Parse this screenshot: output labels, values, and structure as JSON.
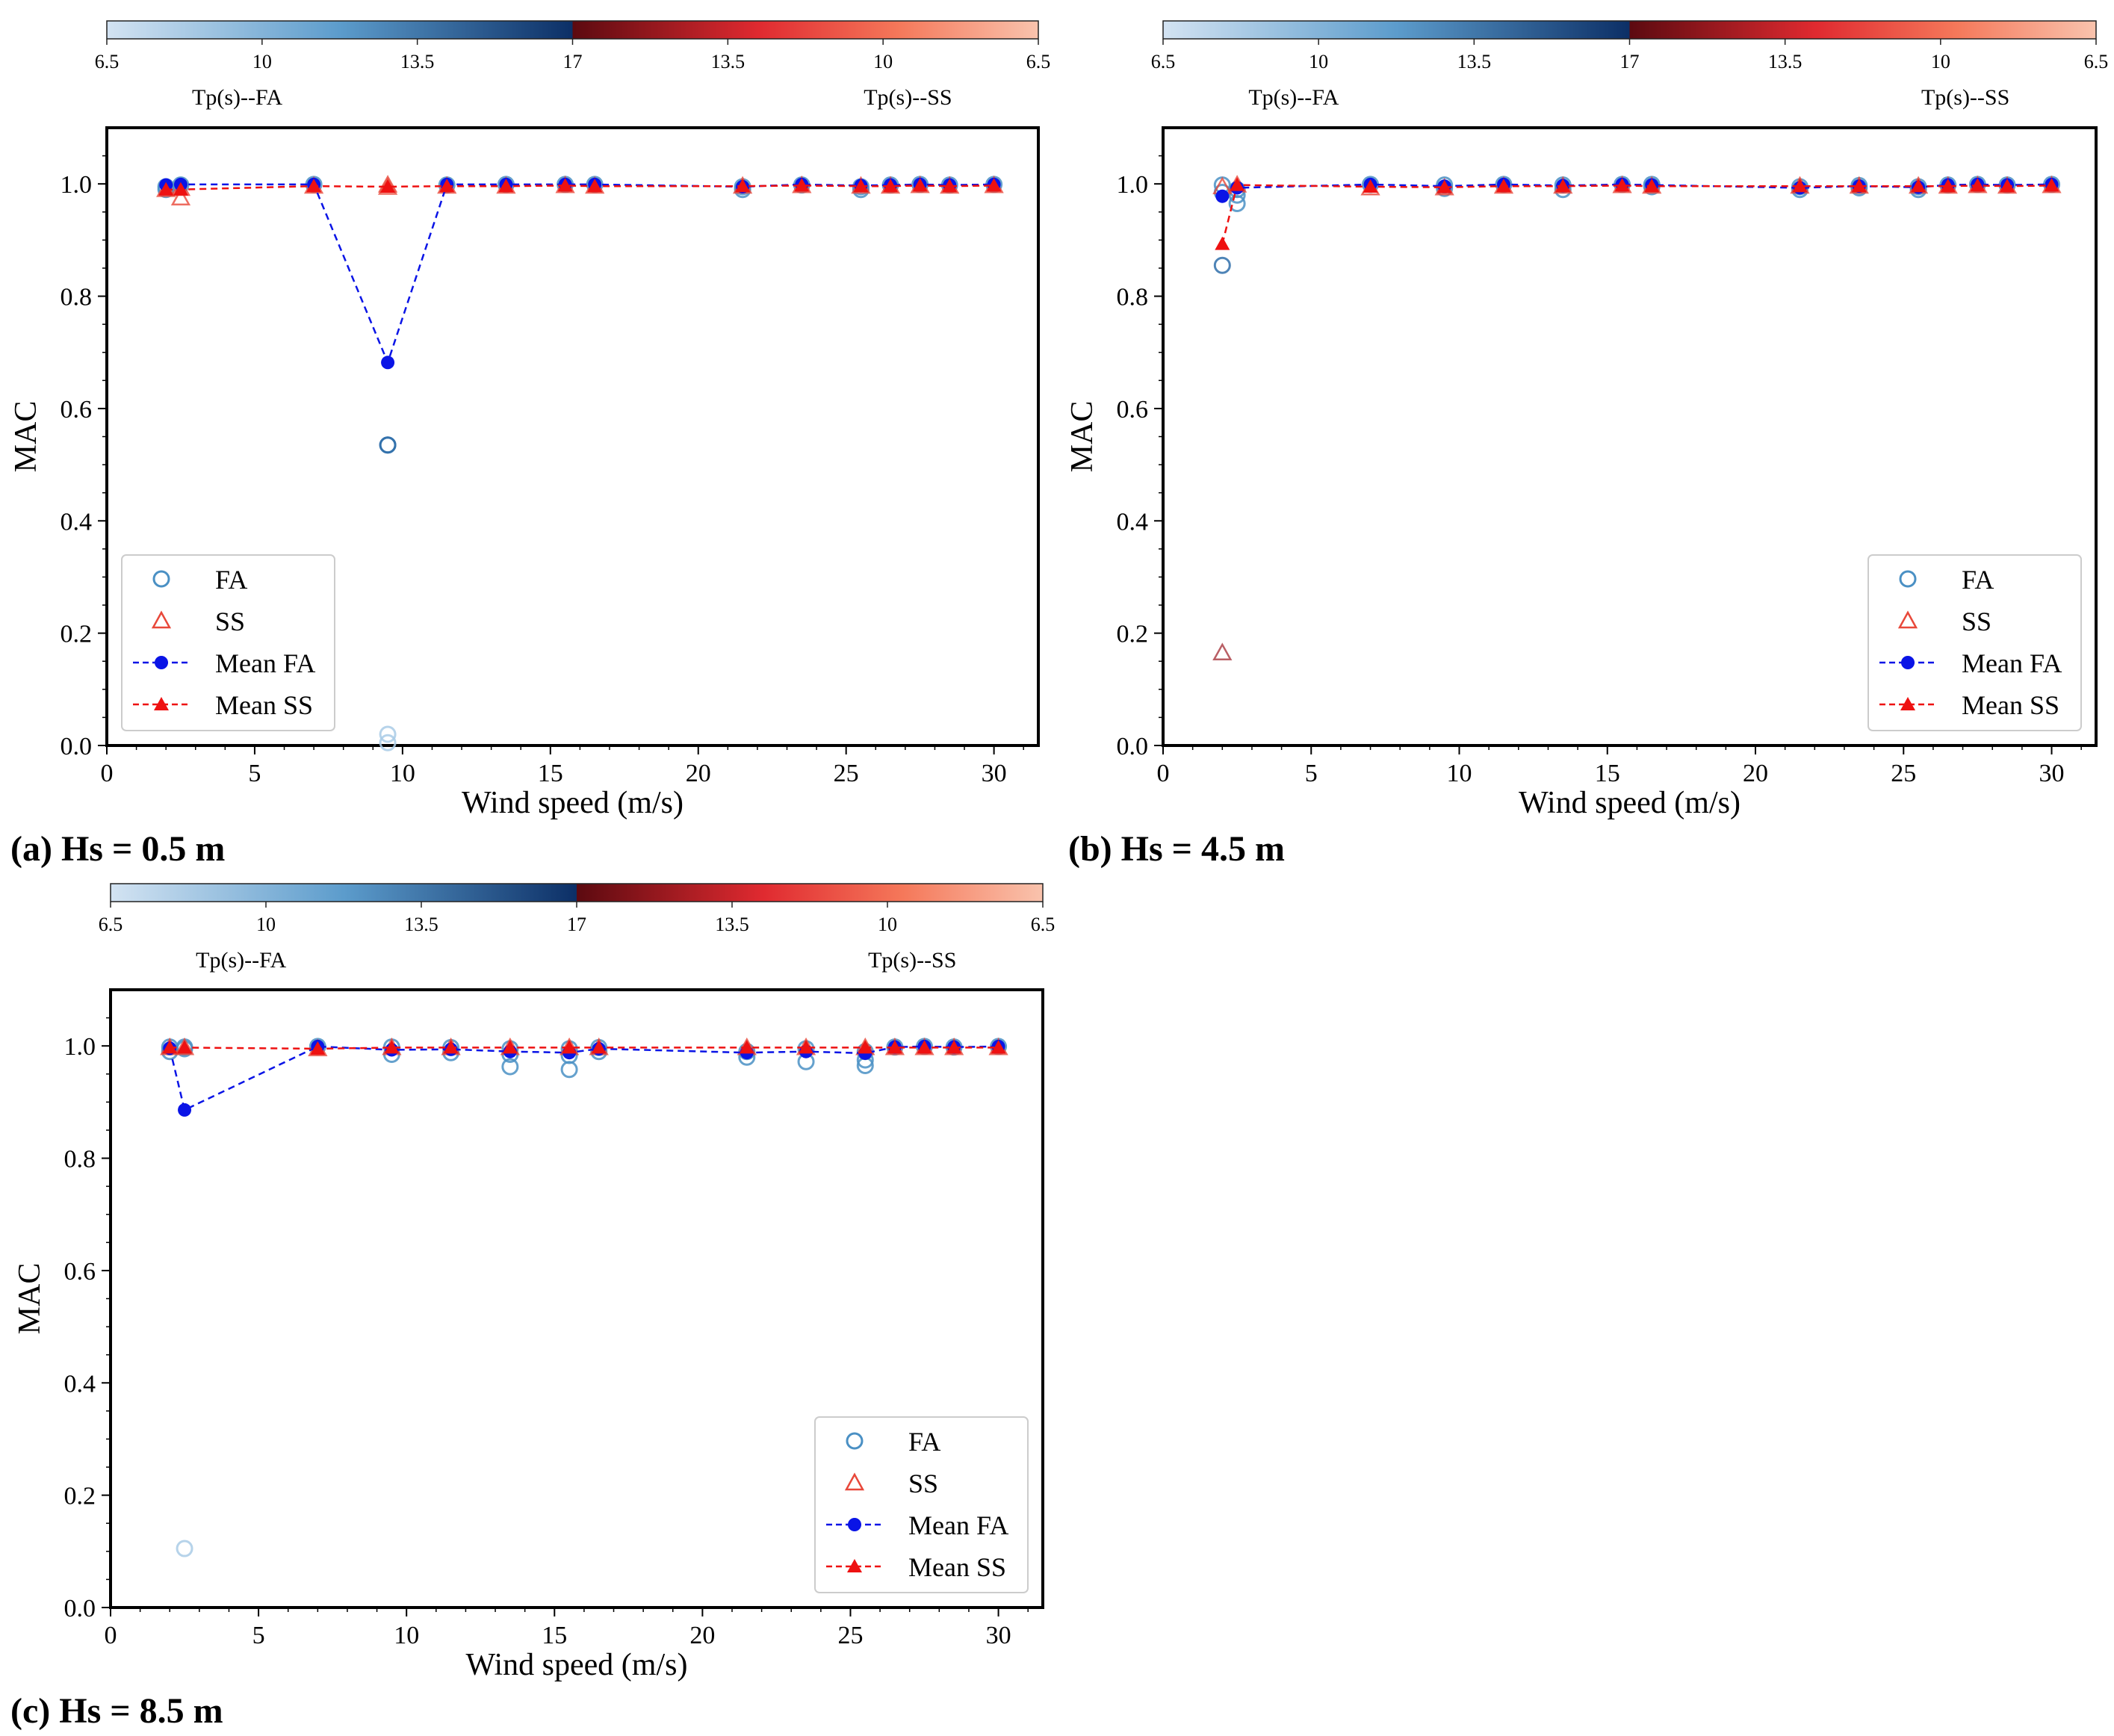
{
  "figure": {
    "colors": {
      "fa_scatter": "#4a90c4",
      "ss_scatter": "#e8483a",
      "mean_fa": "#0a14e6",
      "mean_ss": "#ee1111",
      "cb_fa_light": "#d3e3f2",
      "cb_fa_dark": "#0c2f66",
      "cb_ss_dark": "#5c0a10",
      "cb_ss_light": "#f9c3ad"
    }
  },
  "chart_data": [
    {
      "type": "scatter",
      "panel": "a",
      "caption": "(a) Hs = 0.5 m",
      "xlabel": "Wind speed (m/s)",
      "ylabel": "MAC",
      "xlim": [
        0,
        31.5
      ],
      "ylim": [
        0,
        1.1
      ],
      "xticks": [
        "0",
        "5",
        "10",
        "15",
        "20",
        "25",
        "30"
      ],
      "yticks": [
        "0.0",
        "0.2",
        "0.4",
        "0.6",
        "0.8",
        "1.0"
      ],
      "colorbar": {
        "ticks": [
          "6.5",
          "10",
          "13.5",
          "17",
          "13.5",
          "10",
          "6.5"
        ],
        "label_left": "Tp(s)--FA",
        "label_right": "Tp(s)--SS"
      },
      "legend": {
        "position": "lower-left",
        "entries": [
          "FA",
          "SS",
          "Mean FA",
          "Mean SS"
        ]
      },
      "series": [
        {
          "name": "FA",
          "kind": "points",
          "points": [
            [
              2,
              0.995
            ],
            [
              2,
              0.99
            ],
            [
              2.5,
              0.998
            ],
            [
              7,
              0.999
            ],
            [
              9.5,
              0.535
            ],
            [
              9.5,
              0.535
            ],
            [
              9.5,
              0.02
            ],
            [
              9.5,
              0.005
            ],
            [
              11.5,
              0.998
            ],
            [
              13.5,
              0.999
            ],
            [
              15.5,
              0.999
            ],
            [
              16.5,
              0.999
            ],
            [
              21.5,
              0.995
            ],
            [
              21.5,
              0.99
            ],
            [
              23.5,
              0.998
            ],
            [
              25.5,
              0.995
            ],
            [
              25.5,
              0.99
            ],
            [
              26.5,
              0.998
            ],
            [
              27.5,
              0.999
            ],
            [
              28.5,
              0.998
            ],
            [
              30,
              0.999
            ]
          ]
        },
        {
          "name": "SS",
          "kind": "points",
          "points": [
            [
              2,
              0.99
            ],
            [
              2.5,
              0.975
            ],
            [
              2.5,
              0.992
            ],
            [
              7,
              0.996
            ],
            [
              9.5,
              0.998
            ],
            [
              9.5,
              0.994
            ],
            [
              11.5,
              0.996
            ],
            [
              13.5,
              0.996
            ],
            [
              15.5,
              0.997
            ],
            [
              16.5,
              0.996
            ],
            [
              21.5,
              0.996
            ],
            [
              23.5,
              0.997
            ],
            [
              25.5,
              0.996
            ],
            [
              26.5,
              0.996
            ],
            [
              27.5,
              0.997
            ],
            [
              28.5,
              0.996
            ],
            [
              30,
              0.997
            ]
          ]
        },
        {
          "name": "Mean FA",
          "kind": "mean",
          "x": [
            2,
            2.5,
            7,
            9.5,
            11.5,
            13.5,
            15.5,
            16.5,
            21.5,
            23.5,
            25.5,
            26.5,
            27.5,
            28.5,
            30
          ],
          "y": [
            0.998,
            0.999,
            0.999,
            0.682,
            0.999,
            0.999,
            0.999,
            0.999,
            0.995,
            0.999,
            0.997,
            0.998,
            0.999,
            0.998,
            0.999
          ]
        },
        {
          "name": "Mean SS",
          "kind": "mean",
          "x": [
            2,
            2.5,
            7,
            9.5,
            11.5,
            13.5,
            15.5,
            16.5,
            21.5,
            23.5,
            25.5,
            26.5,
            27.5,
            28.5,
            30
          ],
          "y": [
            0.99,
            0.99,
            0.996,
            0.995,
            0.996,
            0.996,
            0.997,
            0.996,
            0.996,
            0.997,
            0.996,
            0.996,
            0.997,
            0.996,
            0.997
          ]
        }
      ]
    },
    {
      "type": "scatter",
      "panel": "b",
      "caption": "(b) Hs = 4.5 m",
      "xlabel": "Wind speed (m/s)",
      "ylabel": "MAC",
      "xlim": [
        0,
        31.5
      ],
      "ylim": [
        0,
        1.1
      ],
      "xticks": [
        "0",
        "5",
        "10",
        "15",
        "20",
        "25",
        "30"
      ],
      "yticks": [
        "0.0",
        "0.2",
        "0.4",
        "0.6",
        "0.8",
        "1.0"
      ],
      "colorbar": {
        "ticks": [
          "6.5",
          "10",
          "13.5",
          "17",
          "13.5",
          "10",
          "6.5"
        ],
        "label_left": "Tp(s)--FA",
        "label_right": "Tp(s)--SS"
      },
      "legend": {
        "position": "lower-right",
        "entries": [
          "FA",
          "SS",
          "Mean FA",
          "Mean SS"
        ]
      },
      "series": [
        {
          "name": "FA",
          "kind": "points",
          "points": [
            [
              2,
              0.998
            ],
            [
              2,
              0.985
            ],
            [
              2,
              0.855
            ],
            [
              2.5,
              0.99
            ],
            [
              2.5,
              0.98
            ],
            [
              2.5,
              0.965
            ],
            [
              7,
              0.999
            ],
            [
              9.5,
              0.998
            ],
            [
              9.5,
              0.992
            ],
            [
              11.5,
              0.999
            ],
            [
              13.5,
              0.998
            ],
            [
              13.5,
              0.99
            ],
            [
              15.5,
              0.999
            ],
            [
              16.5,
              0.999
            ],
            [
              16.5,
              0.995
            ],
            [
              21.5,
              0.995
            ],
            [
              21.5,
              0.99
            ],
            [
              23.5,
              0.997
            ],
            [
              23.5,
              0.993
            ],
            [
              25.5,
              0.995
            ],
            [
              25.5,
              0.99
            ],
            [
              26.5,
              0.998
            ],
            [
              27.5,
              0.999
            ],
            [
              28.5,
              0.998
            ],
            [
              30,
              0.999
            ]
          ]
        },
        {
          "name": "SS",
          "kind": "points",
          "points": [
            [
              2,
              0.165
            ],
            [
              2,
              0.995
            ],
            [
              2.5,
              0.998
            ],
            [
              7,
              0.993
            ],
            [
              9.5,
              0.993
            ],
            [
              11.5,
              0.996
            ],
            [
              13.5,
              0.996
            ],
            [
              15.5,
              0.997
            ],
            [
              16.5,
              0.996
            ],
            [
              21.5,
              0.996
            ],
            [
              23.5,
              0.996
            ],
            [
              25.5,
              0.996
            ],
            [
              26.5,
              0.996
            ],
            [
              27.5,
              0.997
            ],
            [
              28.5,
              0.996
            ],
            [
              30,
              0.997
            ]
          ]
        },
        {
          "name": "Mean FA",
          "kind": "mean",
          "x": [
            2,
            2.5,
            7,
            9.5,
            11.5,
            13.5,
            15.5,
            16.5,
            21.5,
            23.5,
            25.5,
            26.5,
            27.5,
            28.5,
            30
          ],
          "y": [
            0.978,
            0.993,
            0.999,
            0.996,
            0.999,
            0.997,
            0.999,
            0.998,
            0.993,
            0.996,
            0.994,
            0.998,
            0.999,
            0.998,
            0.999
          ]
        },
        {
          "name": "Mean SS",
          "kind": "mean",
          "x": [
            2,
            2.5,
            7,
            9.5,
            11.5,
            13.5,
            15.5,
            16.5,
            21.5,
            23.5,
            25.5,
            26.5,
            27.5,
            28.5,
            30
          ],
          "y": [
            0.893,
            0.998,
            0.995,
            0.994,
            0.996,
            0.996,
            0.997,
            0.996,
            0.996,
            0.996,
            0.996,
            0.996,
            0.997,
            0.996,
            0.997
          ]
        }
      ]
    },
    {
      "type": "scatter",
      "panel": "c",
      "caption": "(c) Hs = 8.5 m",
      "xlabel": "Wind speed (m/s)",
      "ylabel": "MAC",
      "xlim": [
        0,
        31.5
      ],
      "ylim": [
        0,
        1.1
      ],
      "xticks": [
        "0",
        "5",
        "10",
        "15",
        "20",
        "25",
        "30"
      ],
      "yticks": [
        "0.0",
        "0.2",
        "0.4",
        "0.6",
        "0.8",
        "1.0"
      ],
      "colorbar": {
        "ticks": [
          "6.5",
          "10",
          "13.5",
          "17",
          "13.5",
          "10",
          "6.5"
        ],
        "label_left": "Tp(s)--FA",
        "label_right": "Tp(s)--SS"
      },
      "legend": {
        "position": "lower-right",
        "entries": [
          "FA",
          "SS",
          "Mean FA",
          "Mean SS"
        ]
      },
      "series": [
        {
          "name": "FA",
          "kind": "points",
          "points": [
            [
              2,
              0.998
            ],
            [
              2,
              0.99
            ],
            [
              2.5,
              0.998
            ],
            [
              2.5,
              0.995
            ],
            [
              2.5,
              0.105
            ],
            [
              7,
              0.999
            ],
            [
              9.5,
              0.998
            ],
            [
              9.5,
              0.985
            ],
            [
              11.5,
              0.997
            ],
            [
              11.5,
              0.988
            ],
            [
              13.5,
              0.995
            ],
            [
              13.5,
              0.985
            ],
            [
              13.5,
              0.963
            ],
            [
              15.5,
              0.995
            ],
            [
              15.5,
              0.983
            ],
            [
              15.5,
              0.958
            ],
            [
              16.5,
              0.997
            ],
            [
              16.5,
              0.99
            ],
            [
              21.5,
              0.99
            ],
            [
              21.5,
              0.98
            ],
            [
              23.5,
              0.995
            ],
            [
              23.5,
              0.972
            ],
            [
              25.5,
              0.99
            ],
            [
              25.5,
              0.975
            ],
            [
              25.5,
              0.965
            ],
            [
              26.5,
              0.998
            ],
            [
              27.5,
              0.999
            ],
            [
              28.5,
              0.998
            ],
            [
              30,
              0.999
            ]
          ]
        },
        {
          "name": "SS",
          "kind": "points",
          "points": [
            [
              2,
              0.997
            ],
            [
              2.5,
              0.997
            ],
            [
              7,
              0.995
            ],
            [
              9.5,
              0.997
            ],
            [
              11.5,
              0.997
            ],
            [
              13.5,
              0.997
            ],
            [
              15.5,
              0.997
            ],
            [
              16.5,
              0.997
            ],
            [
              21.5,
              0.997
            ],
            [
              23.5,
              0.997
            ],
            [
              25.5,
              0.997
            ],
            [
              26.5,
              0.997
            ],
            [
              27.5,
              0.997
            ],
            [
              28.5,
              0.997
            ],
            [
              30,
              0.997
            ]
          ]
        },
        {
          "name": "Mean FA",
          "kind": "mean",
          "x": [
            2,
            2.5,
            7,
            9.5,
            11.5,
            13.5,
            15.5,
            16.5,
            21.5,
            23.5,
            25.5,
            26.5,
            27.5,
            28.5,
            30
          ],
          "y": [
            0.996,
            0.886,
            0.999,
            0.993,
            0.994,
            0.99,
            0.988,
            0.995,
            0.988,
            0.99,
            0.987,
            0.998,
            0.999,
            0.998,
            0.999
          ]
        },
        {
          "name": "Mean SS",
          "kind": "mean",
          "x": [
            2,
            2.5,
            7,
            9.5,
            11.5,
            13.5,
            15.5,
            16.5,
            21.5,
            23.5,
            25.5,
            26.5,
            27.5,
            28.5,
            30
          ],
          "y": [
            0.997,
            0.997,
            0.995,
            0.997,
            0.997,
            0.997,
            0.997,
            0.997,
            0.997,
            0.997,
            0.997,
            0.997,
            0.997,
            0.997,
            0.997
          ]
        }
      ]
    }
  ]
}
